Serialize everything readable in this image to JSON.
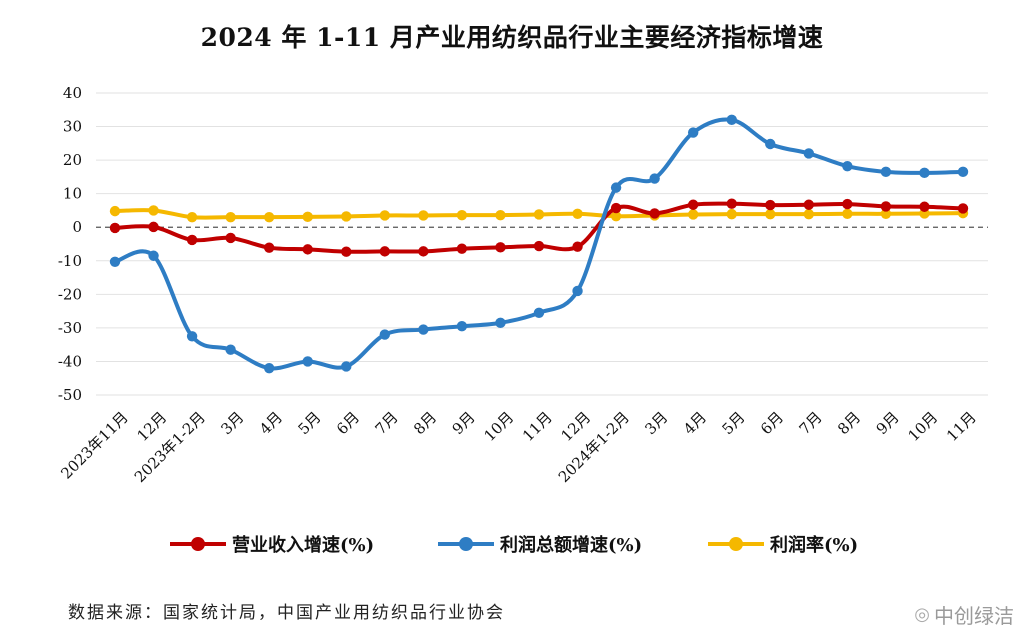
{
  "title": "2024 年 1-11 月产业用纺织品行业主要经济指标增速",
  "source": "数据来源：国家统计局，中国产业用纺织品行业协会",
  "watermark": "中创绿洁",
  "chart_data": {
    "type": "line",
    "title": "2024 年 1-11 月产业用纺织品行业主要经济指标增速",
    "categories": [
      "2023年11月",
      "12月",
      "2023年1-2月",
      "3月",
      "4月",
      "5月",
      "6月",
      "7月",
      "8月",
      "9月",
      "10月",
      "11月",
      "12月",
      "2024年1-2月",
      "3月",
      "4月",
      "5月",
      "6月",
      "7月",
      "8月",
      "9月",
      "10月",
      "11月"
    ],
    "ylim": [
      -50,
      40
    ],
    "yticks": [
      40,
      30,
      20,
      10,
      0,
      -10,
      -20,
      -30,
      -40,
      -50
    ],
    "grid": "horizontal",
    "zero_line": "dashed",
    "legend_position": "bottom",
    "series": [
      {
        "name": "营业收入增速(%)",
        "color": "#c00000",
        "values": [
          -0.2,
          0.1,
          -3.8,
          -3.2,
          -6.1,
          -6.6,
          -7.3,
          -7.2,
          -7.2,
          -6.4,
          -6.0,
          -5.6,
          -5.8,
          5.7,
          4.1,
          6.7,
          7.0,
          6.6,
          6.7,
          6.9,
          6.2,
          6.1,
          5.6
        ]
      },
      {
        "name": "利润总额增速(%)",
        "color": "#2e7dc4",
        "values": [
          -10.3,
          -8.5,
          -32.5,
          -36.5,
          -42.0,
          -40.0,
          -41.5,
          -32.0,
          -30.5,
          -29.5,
          -28.5,
          -25.5,
          -19.0,
          11.8,
          14.5,
          28.2,
          32.0,
          24.8,
          22.0,
          18.2,
          16.5,
          16.2,
          16.5
        ]
      },
      {
        "name": "利润率(%)",
        "color": "#f5b800",
        "values": [
          4.8,
          5.0,
          3.0,
          3.0,
          3.0,
          3.1,
          3.2,
          3.5,
          3.5,
          3.6,
          3.6,
          3.8,
          4.0,
          3.3,
          3.5,
          3.8,
          3.9,
          3.9,
          3.9,
          4.0,
          4.0,
          4.1,
          4.2
        ]
      }
    ]
  }
}
